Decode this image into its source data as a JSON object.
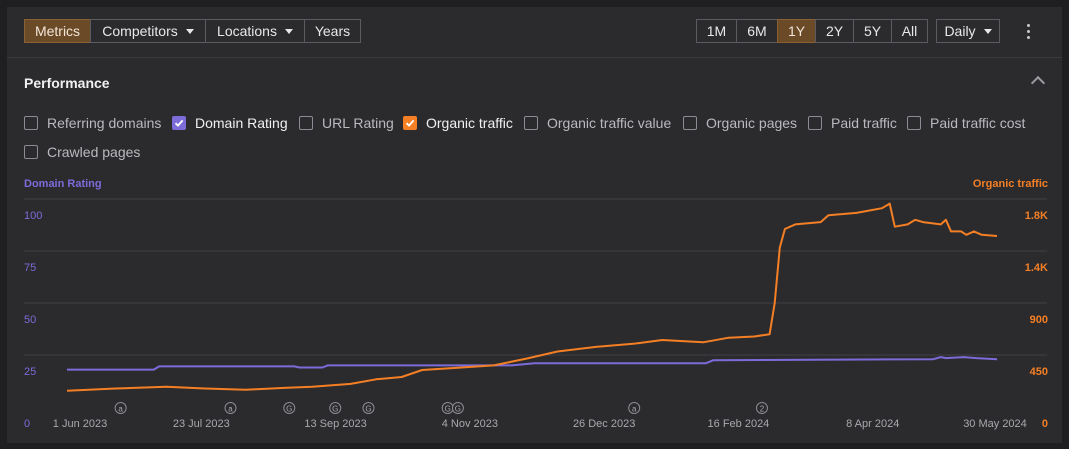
{
  "toolbar": {
    "tabs": [
      {
        "label": "Metrics",
        "active": true,
        "dropdown": false
      },
      {
        "label": "Competitors",
        "active": false,
        "dropdown": true
      },
      {
        "label": "Locations",
        "active": false,
        "dropdown": true
      },
      {
        "label": "Years",
        "active": false,
        "dropdown": false
      }
    ],
    "ranges": [
      {
        "label": "1M",
        "active": false
      },
      {
        "label": "6M",
        "active": false
      },
      {
        "label": "1Y",
        "active": true
      },
      {
        "label": "2Y",
        "active": false
      },
      {
        "label": "5Y",
        "active": false
      },
      {
        "label": "All",
        "active": false
      }
    ],
    "granularity": "Daily",
    "more_icon": "kebab-menu-icon"
  },
  "section": {
    "title": "Performance",
    "collapse_icon": "chevron-up-icon"
  },
  "metrics": [
    {
      "label": "Referring domains",
      "checked": false,
      "color": ""
    },
    {
      "label": "Domain Rating",
      "checked": true,
      "color": "#7b6cd9"
    },
    {
      "label": "URL Rating",
      "checked": false,
      "color": ""
    },
    {
      "label": "Organic traffic",
      "checked": true,
      "color": "#f47f24"
    },
    {
      "label": "Organic traffic value",
      "checked": false,
      "color": ""
    },
    {
      "label": "Organic pages",
      "checked": false,
      "color": ""
    },
    {
      "label": "Paid traffic",
      "checked": false,
      "color": ""
    },
    {
      "label": "Paid traffic cost",
      "checked": false,
      "color": ""
    },
    {
      "label": "Crawled pages",
      "checked": false,
      "color": ""
    }
  ],
  "chart_data": {
    "type": "line",
    "left_axis": {
      "label": "Domain Rating",
      "ticks": [
        "0",
        "25",
        "50",
        "75",
        "100"
      ],
      "range": [
        0,
        100
      ],
      "color": "#7b6cd9"
    },
    "right_axis": {
      "label": "Organic traffic",
      "ticks": [
        "0",
        "450",
        "900",
        "1.4K",
        "1.8K"
      ],
      "range": [
        0,
        1800
      ],
      "color": "#f47f24"
    },
    "x_ticks": [
      "1 Jun 2023",
      "23 Jul 2023",
      "13 Sep 2023",
      "4 Nov 2023",
      "26 Dec 2023",
      "16 Feb 2024",
      "8 Apr 2024",
      "30 May 2024"
    ],
    "x_range": [
      "2023-06-01",
      "2024-05-30"
    ],
    "grid": true,
    "annotations": [
      {
        "date": "2023-06-22",
        "label": "a"
      },
      {
        "date": "2023-08-04",
        "label": "a"
      },
      {
        "date": "2023-08-27",
        "label": "G"
      },
      {
        "date": "2023-09-14",
        "label": "G"
      },
      {
        "date": "2023-09-27",
        "label": "G"
      },
      {
        "date": "2023-10-28",
        "label": "G"
      },
      {
        "date": "2023-11-01",
        "label": "G"
      },
      {
        "date": "2024-01-09",
        "label": "a"
      },
      {
        "date": "2024-02-28",
        "label": "2"
      }
    ],
    "series": [
      {
        "name": "Domain Rating",
        "axis": "left",
        "color": "#7b6cd9",
        "points": [
          [
            "2023-06-01",
            18
          ],
          [
            "2023-07-05",
            18
          ],
          [
            "2023-07-07",
            19.5
          ],
          [
            "2023-08-29",
            19.5
          ],
          [
            "2023-08-31",
            19
          ],
          [
            "2023-09-09",
            19
          ],
          [
            "2023-09-11",
            20
          ],
          [
            "2023-11-20",
            20
          ],
          [
            "2023-11-22",
            20
          ],
          [
            "2023-12-01",
            21
          ],
          [
            "2024-02-06",
            21
          ],
          [
            "2024-02-09",
            22.5
          ],
          [
            "2024-05-05",
            23
          ],
          [
            "2024-05-08",
            24
          ],
          [
            "2024-05-10",
            23.5
          ],
          [
            "2024-05-17",
            24
          ],
          [
            "2024-05-22",
            23.5
          ],
          [
            "2024-05-30",
            23
          ]
        ]
      },
      {
        "name": "Organic traffic",
        "axis": "right",
        "color": "#f47f24",
        "points": [
          [
            "2023-06-01",
            140
          ],
          [
            "2023-06-20",
            160
          ],
          [
            "2023-07-10",
            175
          ],
          [
            "2023-07-25",
            160
          ],
          [
            "2023-08-10",
            150
          ],
          [
            "2023-08-25",
            165
          ],
          [
            "2023-09-05",
            175
          ],
          [
            "2023-09-20",
            200
          ],
          [
            "2023-09-30",
            240
          ],
          [
            "2023-10-10",
            260
          ],
          [
            "2023-10-18",
            320
          ],
          [
            "2023-11-01",
            340
          ],
          [
            "2023-11-15",
            360
          ],
          [
            "2023-11-28",
            420
          ],
          [
            "2023-12-10",
            480
          ],
          [
            "2023-12-25",
            520
          ],
          [
            "2024-01-10",
            550
          ],
          [
            "2024-01-20",
            580
          ],
          [
            "2024-02-05",
            560
          ],
          [
            "2024-02-15",
            600
          ],
          [
            "2024-02-25",
            610
          ],
          [
            "2024-03-02",
            630
          ],
          [
            "2024-03-04",
            900
          ],
          [
            "2024-03-06",
            1380
          ],
          [
            "2024-03-08",
            1540
          ],
          [
            "2024-03-12",
            1580
          ],
          [
            "2024-03-22",
            1600
          ],
          [
            "2024-03-25",
            1660
          ],
          [
            "2024-04-05",
            1680
          ],
          [
            "2024-04-15",
            1720
          ],
          [
            "2024-04-18",
            1760
          ],
          [
            "2024-04-20",
            1560
          ],
          [
            "2024-04-25",
            1580
          ],
          [
            "2024-04-28",
            1620
          ],
          [
            "2024-05-01",
            1600
          ],
          [
            "2024-05-08",
            1580
          ],
          [
            "2024-05-10",
            1620
          ],
          [
            "2024-05-12",
            1520
          ],
          [
            "2024-05-16",
            1520
          ],
          [
            "2024-05-18",
            1490
          ],
          [
            "2024-05-21",
            1520
          ],
          [
            "2024-05-24",
            1490
          ],
          [
            "2024-05-30",
            1480
          ]
        ]
      }
    ]
  }
}
